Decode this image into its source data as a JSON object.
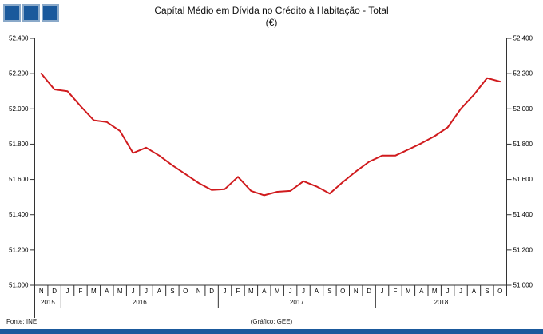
{
  "header": {
    "title": "Capítal Médio em Dívida no Crédito à Habitação - Total",
    "subtitle": "(€)"
  },
  "footer": {
    "source": "Fonte: INE",
    "credit": "(Gráfico: GEE)"
  },
  "colors": {
    "line": "#d01b1e",
    "logo_blue": "#1a599c",
    "logo_border": "#8aa9c9",
    "bottom_bar": "#1a599c",
    "axis": "#333333",
    "text": "#000000"
  },
  "chart_data": {
    "type": "line",
    "title": "Capítal Médio em Dívida no Crédito à Habitação - Total",
    "subtitle": "(€)",
    "xlabel": "",
    "ylabel": "",
    "ylim": [
      51000,
      52400
    ],
    "ytick_step": 200,
    "ytick_labels": [
      "51.000",
      "51.200",
      "51.400",
      "51.600",
      "51.800",
      "52.000",
      "52.200",
      "52.400"
    ],
    "grid": false,
    "legend": "none",
    "x_months": [
      "N",
      "D",
      "J",
      "F",
      "M",
      "A",
      "M",
      "J",
      "J",
      "A",
      "S",
      "O",
      "N",
      "D",
      "J",
      "F",
      "M",
      "A",
      "M",
      "J",
      "J",
      "A",
      "S",
      "O",
      "N",
      "D",
      "J",
      "F",
      "M",
      "A",
      "M",
      "J",
      "J",
      "A",
      "S",
      "O"
    ],
    "year_groups": [
      {
        "label": "2015",
        "start": 0,
        "months": 2
      },
      {
        "label": "2016",
        "start": 2,
        "months": 12
      },
      {
        "label": "2017",
        "start": 14,
        "months": 12
      },
      {
        "label": "2018",
        "start": 26,
        "months": 10
      }
    ],
    "series": [
      {
        "name": "Capital médio em dívida no crédito à habitação - Total (€)",
        "values": [
          52200,
          52110,
          52100,
          52015,
          51935,
          51925,
          51875,
          51750,
          51780,
          51735,
          51680,
          51630,
          51580,
          51540,
          51545,
          51615,
          51535,
          51510,
          51530,
          51535,
          51590,
          51560,
          51520,
          51585,
          51645,
          51700,
          51735,
          51735,
          51770,
          51805,
          51845,
          51895,
          52000,
          52080,
          52175,
          52155
        ]
      }
    ]
  }
}
